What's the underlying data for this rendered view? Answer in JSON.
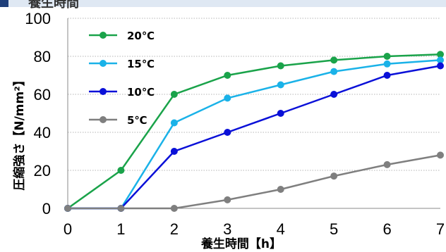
{
  "header": {
    "title": "養生時間"
  },
  "chart_data": {
    "type": "line",
    "title": "",
    "xlabel": "養生時間【h】",
    "ylabel": "圧縮強さ【N/mm²】",
    "xlim": [
      0,
      7
    ],
    "ylim": [
      0,
      100
    ],
    "x_ticks": [
      "0",
      "1",
      "2",
      "3",
      "4",
      "5",
      "6",
      "7"
    ],
    "y_ticks": [
      "0",
      "20",
      "40",
      "60",
      "80",
      "100"
    ],
    "grid": "horizontal-dotted",
    "legend_position": "top-left",
    "series": [
      {
        "name": "20℃",
        "color": "#1aa34a",
        "x": [
          0,
          1,
          2,
          3,
          4,
          5,
          6,
          7
        ],
        "y": [
          0,
          20,
          60,
          70,
          75,
          78,
          80,
          81
        ]
      },
      {
        "name": "15℃",
        "color": "#1ab2e8",
        "x": [
          0,
          1,
          2,
          3,
          4,
          5,
          6,
          7
        ],
        "y": [
          0,
          0,
          45,
          58,
          65,
          72,
          76,
          78
        ]
      },
      {
        "name": "10℃",
        "color": "#0a10d8",
        "x": [
          0,
          1,
          2,
          3,
          4,
          5,
          6,
          7
        ],
        "y": [
          0,
          0,
          30,
          40,
          50,
          60,
          70,
          75
        ]
      },
      {
        "name": "5℃",
        "color": "#7f7f7f",
        "x": [
          0,
          1,
          2,
          3,
          4,
          5,
          6,
          7
        ],
        "y": [
          0,
          0,
          0,
          4.5,
          10,
          17,
          23,
          28
        ]
      }
    ]
  }
}
